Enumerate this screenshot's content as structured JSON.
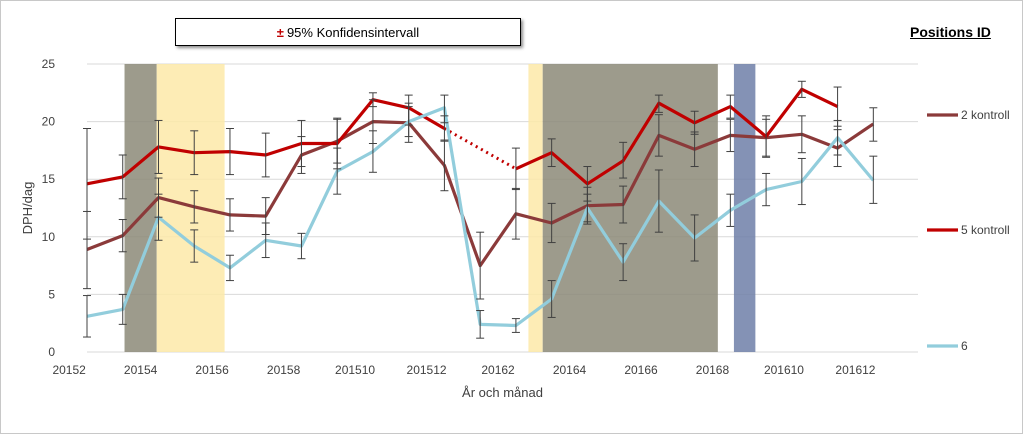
{
  "chart_data": {
    "type": "line",
    "ci_label_symbol": "±",
    "ci_label_text": "95% Konfidensintervall",
    "legend_title": "Positions ID",
    "xlabel": "År och månad",
    "ylabel": "DPH/dag",
    "ylim": [
      0,
      25
    ],
    "yticks": [
      0,
      5,
      10,
      15,
      20,
      25
    ],
    "grid": "horizontal",
    "legend_placement": "right",
    "x_index_range": [
      0.5,
      23.75
    ],
    "x_tick_labels": [
      {
        "index": 0,
        "label": "20152"
      },
      {
        "index": 2,
        "label": "20154"
      },
      {
        "index": 4,
        "label": "20156"
      },
      {
        "index": 6,
        "label": "20158"
      },
      {
        "index": 8,
        "label": "201510"
      },
      {
        "index": 10,
        "label": "201512"
      },
      {
        "index": 12,
        "label": "20162"
      },
      {
        "index": 14,
        "label": "20164"
      },
      {
        "index": 16,
        "label": "20166"
      },
      {
        "index": 18,
        "label": "20168"
      },
      {
        "index": 20,
        "label": "201610"
      },
      {
        "index": 22,
        "label": "201612"
      }
    ],
    "shaded_periods": [
      {
        "start": 1.55,
        "end": 2.45,
        "color": "#8c8a78",
        "opacity": 0.85
      },
      {
        "start": 2.45,
        "end": 4.35,
        "color": "#fde9a8",
        "opacity": 0.85
      },
      {
        "start": 12.85,
        "end": 13.25,
        "color": "#fde9a8",
        "opacity": 0.85
      },
      {
        "start": 13.25,
        "end": 18.15,
        "color": "#8c8a78",
        "opacity": 0.85
      },
      {
        "start": 18.6,
        "end": 19.2,
        "color": "#6f7fa8",
        "opacity": 0.85
      }
    ],
    "series": [
      {
        "name": "2 kontroll",
        "color": "#8b3a3a",
        "points": [
          {
            "x": 0.5,
            "y": 8.9,
            "lo": 5.5,
            "hi": 12.2
          },
          {
            "x": 1.5,
            "y": 10.1,
            "lo": 8.7,
            "hi": 11.5
          },
          {
            "x": 2.5,
            "y": 13.4,
            "lo": 11.7,
            "hi": 15.1
          },
          {
            "x": 3.5,
            "y": 12.6,
            "lo": 11.2,
            "hi": 14.0
          },
          {
            "x": 4.5,
            "y": 11.9,
            "lo": 10.5,
            "hi": 13.3
          },
          {
            "x": 5.5,
            "y": 11.8,
            "lo": 10.2,
            "hi": 13.4
          },
          {
            "x": 6.5,
            "y": 17.1,
            "lo": 15.5,
            "hi": 18.7
          },
          {
            "x": 7.5,
            "y": 18.3,
            "lo": 16.4,
            "hi": 20.2
          },
          {
            "x": 8.5,
            "y": 20.0,
            "lo": 18.1,
            "hi": 21.9
          },
          {
            "x": 9.5,
            "y": 19.9,
            "lo": 18.2,
            "hi": 21.6
          },
          {
            "x": 10.5,
            "y": 16.2,
            "lo": 14.0,
            "hi": 18.4
          },
          {
            "x": 11.5,
            "y": 7.5,
            "lo": 4.6,
            "hi": 10.4
          },
          {
            "x": 12.5,
            "y": 12.0,
            "lo": 9.8,
            "hi": 14.2
          },
          {
            "x": 13.5,
            "y": 11.2,
            "lo": 9.5,
            "hi": 12.9
          },
          {
            "x": 14.5,
            "y": 12.7,
            "lo": 11.1,
            "hi": 14.3
          },
          {
            "x": 15.5,
            "y": 12.8,
            "lo": 11.2,
            "hi": 14.4
          },
          {
            "x": 16.5,
            "y": 18.8,
            "lo": 17.0,
            "hi": 20.6
          },
          {
            "x": 17.5,
            "y": 17.6,
            "lo": 16.1,
            "hi": 19.1
          },
          {
            "x": 18.5,
            "y": 18.8,
            "lo": 17.4,
            "hi": 20.2
          },
          {
            "x": 19.5,
            "y": 18.6,
            "lo": 17.0,
            "hi": 20.2
          },
          {
            "x": 20.5,
            "y": 18.9,
            "lo": 17.3,
            "hi": 20.5
          },
          {
            "x": 21.5,
            "y": 17.7,
            "lo": 16.1,
            "hi": 19.3
          },
          {
            "x": 22.5,
            "y": 19.8,
            "lo": 18.3,
            "hi": 21.2
          }
        ]
      },
      {
        "name": "5 kontroll",
        "color": "#c00000",
        "dotted_gap": [
          10,
          12
        ],
        "points": [
          {
            "x": 0.5,
            "y": 14.6,
            "lo": 9.8,
            "hi": 19.4
          },
          {
            "x": 1.5,
            "y": 15.2,
            "lo": 13.3,
            "hi": 17.1
          },
          {
            "x": 2.5,
            "y": 17.8,
            "lo": 15.5,
            "hi": 20.1
          },
          {
            "x": 3.5,
            "y": 17.3,
            "lo": 15.4,
            "hi": 19.2
          },
          {
            "x": 4.5,
            "y": 17.4,
            "lo": 15.4,
            "hi": 19.4
          },
          {
            "x": 5.5,
            "y": 17.1,
            "lo": 15.2,
            "hi": 19.0
          },
          {
            "x": 6.5,
            "y": 18.1,
            "lo": 16.1,
            "hi": 20.1
          },
          {
            "x": 7.5,
            "y": 18.1,
            "lo": 15.9,
            "hi": 20.3
          },
          {
            "x": 8.5,
            "y": 21.9,
            "lo": 21.3,
            "hi": 22.5
          },
          {
            "x": 9.5,
            "y": 21.2,
            "lo": 19.7,
            "hi": 22.3
          },
          {
            "x": 10.5,
            "y": 19.4,
            "lo": 18.3,
            "hi": 20.5
          },
          {
            "x": 12.5,
            "y": 15.9,
            "lo": 14.1,
            "hi": 17.7
          },
          {
            "x": 13.5,
            "y": 17.3,
            "lo": 16.1,
            "hi": 18.5
          },
          {
            "x": 14.5,
            "y": 14.6,
            "lo": 13.1,
            "hi": 16.1
          },
          {
            "x": 15.5,
            "y": 16.6,
            "lo": 15.1,
            "hi": 18.2
          },
          {
            "x": 16.5,
            "y": 21.6,
            "lo": 20.8,
            "hi": 22.3
          },
          {
            "x": 17.5,
            "y": 19.9,
            "lo": 18.9,
            "hi": 20.9
          },
          {
            "x": 18.5,
            "y": 21.3,
            "lo": 20.3,
            "hi": 22.3
          },
          {
            "x": 19.5,
            "y": 18.7,
            "lo": 16.9,
            "hi": 20.5
          },
          {
            "x": 20.5,
            "y": 22.8,
            "lo": 22.1,
            "hi": 23.5
          },
          {
            "x": 21.5,
            "y": 21.3,
            "lo": 19.6,
            "hi": 23.0
          }
        ]
      },
      {
        "name": "6",
        "color": "#92cddc",
        "points": [
          {
            "x": 0.5,
            "y": 3.1,
            "lo": 1.3,
            "hi": 4.9
          },
          {
            "x": 1.5,
            "y": 3.7,
            "lo": 2.4,
            "hi": 5.0
          },
          {
            "x": 2.5,
            "y": 11.7,
            "lo": 9.7,
            "hi": 13.7
          },
          {
            "x": 3.5,
            "y": 9.2,
            "lo": 7.8,
            "hi": 10.6
          },
          {
            "x": 4.5,
            "y": 7.3,
            "lo": 6.2,
            "hi": 8.4
          },
          {
            "x": 5.5,
            "y": 9.7,
            "lo": 8.2,
            "hi": 11.2
          },
          {
            "x": 6.5,
            "y": 9.2,
            "lo": 8.1,
            "hi": 10.3
          },
          {
            "x": 7.5,
            "y": 15.7,
            "lo": 13.7,
            "hi": 17.7
          },
          {
            "x": 8.5,
            "y": 17.4,
            "lo": 15.6,
            "hi": 19.2
          },
          {
            "x": 9.5,
            "y": 20.0,
            "lo": 18.7,
            "hi": 21.3
          },
          {
            "x": 10.5,
            "y": 21.2,
            "lo": 19.9,
            "hi": 22.3
          },
          {
            "x": 11.5,
            "y": 2.4,
            "lo": 1.2,
            "hi": 3.6
          },
          {
            "x": 12.5,
            "y": 2.3,
            "lo": 1.7,
            "hi": 2.9
          },
          {
            "x": 13.5,
            "y": 4.6,
            "lo": 3.0,
            "hi": 6.2
          },
          {
            "x": 14.5,
            "y": 12.5,
            "lo": 11.3,
            "hi": 13.7
          },
          {
            "x": 15.5,
            "y": 7.8,
            "lo": 6.2,
            "hi": 9.4
          },
          {
            "x": 16.5,
            "y": 13.1,
            "lo": 10.4,
            "hi": 15.8
          },
          {
            "x": 17.5,
            "y": 9.9,
            "lo": 7.9,
            "hi": 11.9
          },
          {
            "x": 18.5,
            "y": 12.3,
            "lo": 10.9,
            "hi": 13.7
          },
          {
            "x": 19.5,
            "y": 14.1,
            "lo": 12.7,
            "hi": 15.5
          },
          {
            "x": 20.5,
            "y": 14.8,
            "lo": 12.8,
            "hi": 16.8
          },
          {
            "x": 21.5,
            "y": 18.6,
            "lo": 17.1,
            "hi": 20.1
          },
          {
            "x": 22.5,
            "y": 14.9,
            "lo": 12.9,
            "hi": 17.0
          }
        ]
      }
    ]
  }
}
